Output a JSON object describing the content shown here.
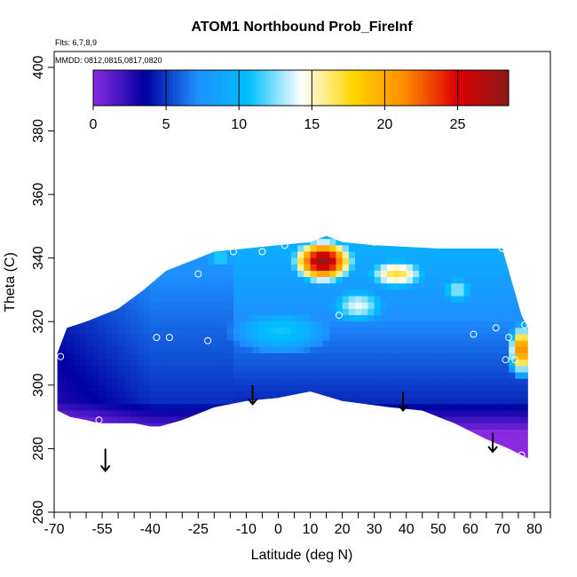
{
  "chart_data": {
    "type": "heatmap",
    "title": "ATOM1 Northbound Prob_FireInf",
    "annotations": {
      "flights": "Flts: 6,7,8,9",
      "mmdd": "MMDD: 0812,0815,0817,0820"
    },
    "xlabel": "Latitude (deg N)",
    "ylabel": "Theta (C)",
    "xlim": [
      -70,
      85
    ],
    "ylim": [
      260,
      405
    ],
    "x_ticks_labeled": [
      "-70",
      "-55",
      "-40",
      "-25",
      "-10",
      "0",
      "10",
      "20",
      "30",
      "40",
      "50",
      "60",
      "70",
      "80"
    ],
    "x_tick_values_labeled": [
      -70,
      -55,
      -40,
      -25,
      -10,
      0,
      10,
      20,
      30,
      40,
      50,
      60,
      70,
      80
    ],
    "x_minor_ticks": [
      -65,
      -60,
      -50,
      -45,
      -35,
      -30,
      -20,
      -15,
      -5,
      5,
      15,
      25,
      35,
      45,
      55,
      65,
      75,
      85
    ],
    "y_ticks": [
      "260",
      "280",
      "300",
      "320",
      "340",
      "360",
      "380",
      "400"
    ],
    "y_tick_values": [
      260,
      280,
      300,
      320,
      340,
      360,
      380,
      400
    ],
    "colorbar": {
      "ticks": [
        "0",
        "5",
        "10",
        "15",
        "20",
        "25"
      ],
      "tick_values": [
        0,
        5,
        10,
        15,
        20,
        25
      ],
      "range": [
        0,
        28.5
      ],
      "colors": [
        "#8a2be2",
        "#0000a0",
        "#1e90ff",
        "#00bfff",
        "#ffffff",
        "#ffd700",
        "#ff8c00",
        "#dd0000",
        "#8b1a1a"
      ]
    },
    "envelope": {
      "top": [
        [
          -69,
          310
        ],
        [
          -66,
          318
        ],
        [
          -60,
          320
        ],
        [
          -50,
          324
        ],
        [
          -42,
          330
        ],
        [
          -35,
          336
        ],
        [
          -25,
          340
        ],
        [
          -20,
          342
        ],
        [
          -10,
          343
        ],
        [
          0,
          344
        ],
        [
          10,
          345
        ],
        [
          15,
          347
        ],
        [
          20,
          345
        ],
        [
          30,
          344
        ],
        [
          50,
          343
        ],
        [
          65,
          343
        ],
        [
          70,
          343
        ],
        [
          72,
          336
        ],
        [
          76,
          322
        ],
        [
          78,
          318
        ]
      ],
      "bottom": [
        [
          78,
          277
        ],
        [
          76,
          278
        ],
        [
          72,
          280
        ],
        [
          65,
          283
        ],
        [
          55,
          288
        ],
        [
          45,
          292
        ],
        [
          35,
          293
        ],
        [
          20,
          295
        ],
        [
          10,
          298
        ],
        [
          0,
          296
        ],
        [
          -10,
          295
        ],
        [
          -20,
          293
        ],
        [
          -30,
          289
        ],
        [
          -37,
          287
        ],
        [
          -40,
          287
        ],
        [
          -45,
          288
        ],
        [
          -56,
          288
        ],
        [
          -60,
          289
        ],
        [
          -65,
          290
        ],
        [
          -69,
          292
        ]
      ]
    },
    "hotspots": [
      {
        "x": 13,
        "y": 340,
        "value": 28,
        "sx": 7,
        "sy": 5
      },
      {
        "x": 75,
        "y": 312,
        "value": 22,
        "sx": 3,
        "sy": 6
      },
      {
        "x": 36,
        "y": 336,
        "value": 17,
        "sx": 8,
        "sy": 4
      },
      {
        "x": 24,
        "y": 326,
        "value": 14,
        "sx": 8,
        "sy": 5
      },
      {
        "x": 55,
        "y": 331,
        "value": 13,
        "sx": 5,
        "sy": 4
      },
      {
        "x": -19,
        "y": 341,
        "value": 12,
        "sx": 4,
        "sy": 3
      },
      {
        "x": 0,
        "y": 318,
        "value": 11,
        "sx": 16,
        "sy": 7
      }
    ],
    "sample_points": [
      {
        "x": -68,
        "y": 309
      },
      {
        "x": -56,
        "y": 289
      },
      {
        "x": -38,
        "y": 315
      },
      {
        "x": -34,
        "y": 315
      },
      {
        "x": -25,
        "y": 335
      },
      {
        "x": -22,
        "y": 314
      },
      {
        "x": -14,
        "y": 342
      },
      {
        "x": -5,
        "y": 342
      },
      {
        "x": 2,
        "y": 344
      },
      {
        "x": 15,
        "y": 348
      },
      {
        "x": 19,
        "y": 322
      },
      {
        "x": 30,
        "y": 345
      },
      {
        "x": 61,
        "y": 316
      },
      {
        "x": 68,
        "y": 318
      },
      {
        "x": 70,
        "y": 343
      },
      {
        "x": 71,
        "y": 308
      },
      {
        "x": 72,
        "y": 315
      },
      {
        "x": 74,
        "y": 308
      },
      {
        "x": 76,
        "y": 278
      },
      {
        "x": 77,
        "y": 319
      }
    ],
    "arrows": [
      {
        "x": -54,
        "y_top": 280,
        "y_bottom": 273
      },
      {
        "x": -8,
        "y_top": 300,
        "y_bottom": 294
      },
      {
        "x": 39,
        "y_top": 298,
        "y_bottom": 292
      },
      {
        "x": 67,
        "y_top": 285,
        "y_bottom": 279
      }
    ]
  }
}
